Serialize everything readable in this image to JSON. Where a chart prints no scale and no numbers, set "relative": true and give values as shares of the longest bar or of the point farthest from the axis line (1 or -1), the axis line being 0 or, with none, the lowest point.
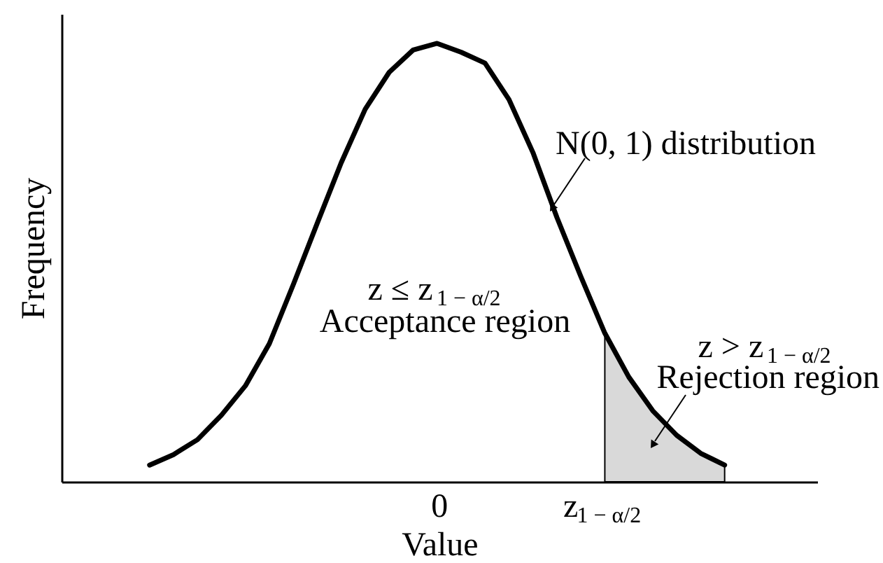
{
  "chart_data": {
    "type": "line",
    "relative": true,
    "xlabel": "Value",
    "ylabel": "Frequency",
    "categories": [
      null,
      null,
      null,
      null,
      null,
      null,
      null,
      null,
      null,
      null,
      null,
      null,
      null,
      null,
      null,
      null,
      null,
      null,
      null,
      null,
      null,
      null,
      null,
      null,
      null
    ],
    "grid": false,
    "marker": "none",
    "line_style": "solid",
    "series": [
      {
        "type": "area",
        "color": "#d9d9d9",
        "values": [
          null,
          null,
          null,
          null,
          null,
          null,
          null,
          null,
          null,
          null,
          null,
          null,
          null,
          null,
          null,
          null,
          null,
          null,
          null,
          0.339,
          0.239,
          0.162,
          0.106,
          0.065,
          0.038
        ]
      },
      {
        "color": "#000000",
        "values": [
          0.038,
          0.062,
          0.096,
          0.152,
          0.219,
          0.315,
          0.45,
          0.59,
          0.728,
          0.85,
          0.934,
          0.985,
          1,
          0.98,
          0.955,
          0.872,
          0.751,
          0.603,
          0.468,
          0.339,
          0.239,
          0.162,
          0.106,
          0.065,
          0.038
        ]
      }
    ],
    "annotations": [
      "N(0, 1) distribution",
      "z ≤ z$_{1 − α/2}$",
      "Acceptance region",
      "z > z$_{1 − α/2}$",
      "Rejection region",
      "0",
      "z$_{1 − α/2}$"
    ]
  }
}
